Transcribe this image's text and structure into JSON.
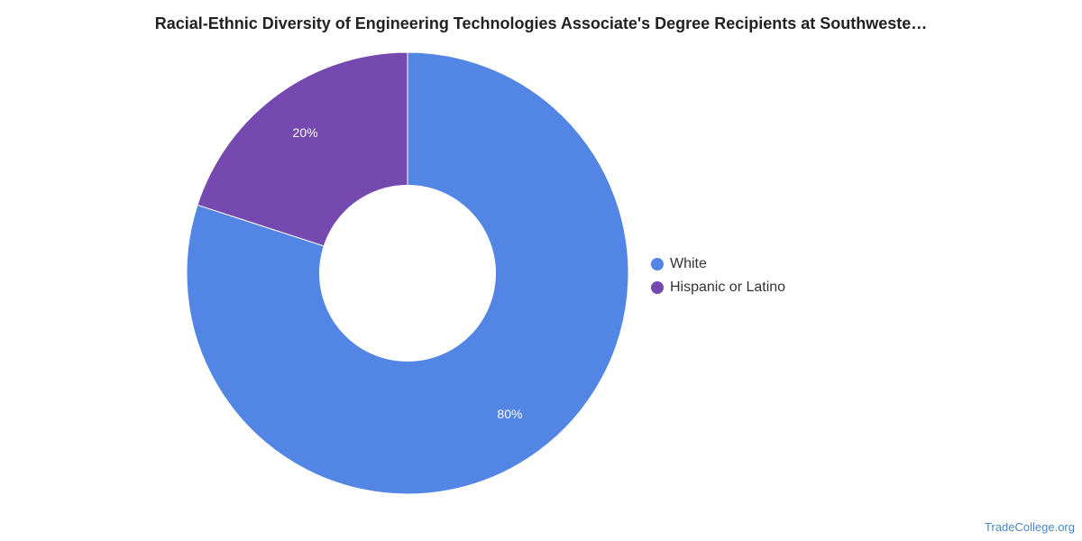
{
  "chart_data": {
    "type": "pie",
    "donut": true,
    "title": "Racial-Ethnic Diversity of Engineering Technologies Associate's Degree Recipients at Southweste…",
    "categories": [
      "White",
      "Hispanic or Latino"
    ],
    "values": [
      80,
      20
    ],
    "data_labels": [
      "80%",
      "20%"
    ],
    "colors": [
      "#5386e4",
      "#7649b0"
    ],
    "legend_position": "right"
  },
  "footer": {
    "watermark": "TradeCollege.org"
  }
}
